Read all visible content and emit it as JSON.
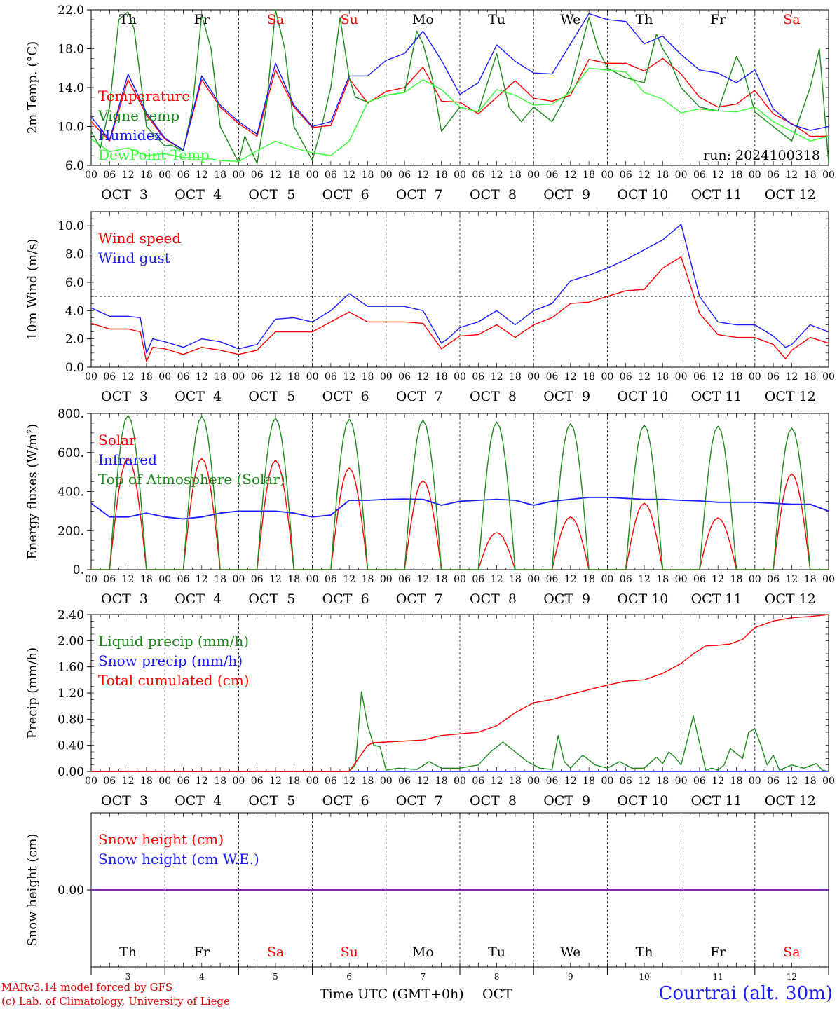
{
  "chart_data": [
    {
      "type": "line",
      "ylabel": "2m Temp. (°C)",
      "ylim": [
        6,
        22
      ],
      "yticks": [
        "6.0",
        "10.0",
        "14.0",
        "18.0",
        "22.0"
      ],
      "annotation": "run: 2024100318",
      "legend_placement": "left",
      "series": [
        {
          "name": "Temperature",
          "color": "#ff0000",
          "x": [
            0,
            6,
            12,
            18,
            24,
            30,
            36,
            42,
            48,
            54,
            60,
            66,
            72,
            78,
            84,
            90,
            96,
            102,
            108,
            114,
            120,
            126,
            132,
            138,
            144,
            150,
            156,
            162,
            168,
            174,
            180,
            186,
            192,
            198,
            204,
            210,
            216,
            222,
            228,
            234,
            240
          ],
          "y": [
            10.5,
            8.5,
            14.8,
            11.2,
            8.7,
            7.6,
            14.8,
            12.0,
            10.3,
            9.0,
            15.8,
            12.0,
            9.9,
            10.1,
            14.9,
            12.4,
            13.6,
            14.0,
            16.1,
            12.6,
            12.5,
            11.3,
            13.0,
            14.7,
            12.9,
            12.6,
            13.2,
            16.9,
            16.5,
            16.5,
            15.7,
            17.0,
            15.4,
            13.0,
            12.0,
            12.3,
            13.7,
            11.3,
            10.3,
            9.0,
            9.0
          ]
        },
        {
          "name": "Vigne temp",
          "color": "#1c8a1c",
          "x": [
            0,
            3,
            6,
            9,
            12,
            14,
            18,
            24,
            26,
            30,
            33,
            36,
            39,
            42,
            48,
            50,
            54,
            57,
            60,
            63,
            66,
            72,
            75,
            78,
            81,
            84,
            86,
            90,
            96,
            102,
            106,
            108,
            111,
            114,
            120,
            126,
            132,
            136,
            140,
            144,
            150,
            156,
            162,
            165,
            168,
            174,
            180,
            184,
            186,
            188,
            192,
            198,
            204,
            210,
            212,
            216,
            220,
            228,
            234,
            237,
            240
          ],
          "y": [
            9.5,
            7.8,
            12.0,
            21.0,
            21.8,
            20.0,
            10.0,
            8.0,
            8.1,
            7.5,
            12.0,
            21.5,
            18.0,
            10.0,
            6.3,
            9.0,
            6.2,
            12.0,
            22.0,
            18.0,
            10.0,
            6.5,
            10.0,
            14.0,
            21.2,
            15.0,
            13.0,
            12.5,
            13.2,
            13.5,
            19.8,
            18.5,
            15.0,
            9.5,
            12.0,
            11.5,
            17.5,
            12.0,
            10.5,
            12.0,
            10.5,
            14.0,
            21.2,
            18.0,
            16.0,
            15.0,
            14.5,
            19.5,
            18.0,
            17.0,
            14.0,
            12.0,
            11.6,
            17.2,
            16.0,
            11.5,
            10.5,
            8.5,
            14.0,
            18.0,
            6.3
          ]
        },
        {
          "name": "Humidex",
          "color": "#1a1aff",
          "x": [
            0,
            6,
            12,
            18,
            24,
            30,
            36,
            42,
            48,
            54,
            60,
            66,
            72,
            78,
            84,
            90,
            96,
            102,
            108,
            114,
            120,
            126,
            132,
            138,
            144,
            150,
            156,
            162,
            168,
            174,
            180,
            186,
            192,
            198,
            204,
            210,
            216,
            222,
            228,
            234,
            240
          ],
          "y": [
            11.0,
            8.6,
            15.4,
            11.4,
            8.8,
            7.6,
            15.2,
            12.2,
            10.5,
            9.2,
            16.5,
            12.2,
            10.0,
            10.5,
            15.2,
            15.2,
            16.8,
            17.5,
            19.8,
            16.8,
            13.3,
            14.5,
            18.4,
            16.7,
            15.5,
            15.4,
            18.5,
            21.6,
            21.0,
            20.8,
            18.5,
            19.3,
            17.4,
            15.8,
            15.5,
            14.5,
            15.8,
            11.8,
            10.2,
            9.6,
            10.0
          ]
        },
        {
          "name": "DewPoint Temp",
          "color": "#33ff33",
          "x": [
            0,
            6,
            12,
            18,
            24,
            30,
            36,
            42,
            48,
            54,
            60,
            66,
            72,
            78,
            84,
            90,
            96,
            102,
            108,
            114,
            120,
            126,
            132,
            138,
            144,
            150,
            156,
            162,
            168,
            174,
            180,
            186,
            192,
            198,
            204,
            210,
            216,
            222,
            228,
            234,
            240
          ],
          "y": [
            8.7,
            7.4,
            7.8,
            7.0,
            7.2,
            6.8,
            6.8,
            6.5,
            6.4,
            7.5,
            8.5,
            7.8,
            7.3,
            7.0,
            8.5,
            12.5,
            13.2,
            13.5,
            14.8,
            13.8,
            12.0,
            11.5,
            13.8,
            13.2,
            12.2,
            12.3,
            13.5,
            16.0,
            15.8,
            15.6,
            13.5,
            12.8,
            11.4,
            11.8,
            11.6,
            11.5,
            12.0,
            10.5,
            9.5,
            8.5,
            9.0
          ]
        }
      ]
    },
    {
      "type": "line",
      "ylabel": "10m Wind (m/s)",
      "ylim": [
        0,
        11
      ],
      "yticks": [
        "0.0",
        "2.0",
        "4.0",
        "6.0",
        "8.0",
        "10.0"
      ],
      "reference_line": 5,
      "legend_placement": "left",
      "series": [
        {
          "name": "Wind speed",
          "color": "#ff0000",
          "x": [
            0,
            6,
            12,
            16,
            18,
            20,
            24,
            30,
            36,
            42,
            48,
            54,
            60,
            66,
            72,
            78,
            84,
            90,
            96,
            102,
            108,
            114,
            116,
            120,
            126,
            132,
            138,
            144,
            150,
            156,
            162,
            168,
            174,
            180,
            186,
            192,
            198,
            204,
            210,
            216,
            222,
            226,
            228,
            234,
            240
          ],
          "y": [
            3.1,
            2.7,
            2.7,
            2.5,
            0.4,
            1.4,
            1.3,
            0.9,
            1.4,
            1.2,
            0.9,
            1.2,
            2.5,
            2.5,
            2.5,
            3.2,
            3.9,
            3.2,
            3.2,
            3.2,
            3.1,
            1.3,
            1.6,
            2.2,
            2.3,
            3.0,
            2.1,
            3.0,
            3.5,
            4.5,
            4.6,
            5.0,
            5.4,
            5.5,
            7.0,
            7.8,
            3.8,
            2.3,
            2.1,
            2.1,
            1.6,
            0.6,
            1.2,
            2.1,
            1.7
          ]
        },
        {
          "name": "Wind gust",
          "color": "#1a1aff",
          "x": [
            0,
            6,
            12,
            16,
            18,
            20,
            24,
            30,
            36,
            42,
            48,
            54,
            60,
            66,
            72,
            78,
            84,
            90,
            96,
            102,
            108,
            114,
            116,
            120,
            126,
            132,
            138,
            144,
            150,
            156,
            162,
            168,
            174,
            180,
            186,
            192,
            198,
            204,
            210,
            216,
            222,
            226,
            228,
            234,
            240
          ],
          "y": [
            4.2,
            3.6,
            3.6,
            3.5,
            1.0,
            2.0,
            1.8,
            1.4,
            2.0,
            1.8,
            1.3,
            1.6,
            3.4,
            3.5,
            3.2,
            4.0,
            5.2,
            4.3,
            4.3,
            4.3,
            4.0,
            1.7,
            2.0,
            2.8,
            3.2,
            4.0,
            3.0,
            4.0,
            4.5,
            6.1,
            6.5,
            7.0,
            7.6,
            8.3,
            9.0,
            10.1,
            5.0,
            3.2,
            3.0,
            3.0,
            2.2,
            1.4,
            1.6,
            3.0,
            2.5
          ]
        }
      ]
    },
    {
      "type": "line",
      "ylabel": "Energy fluxes (W/m²)",
      "ylim": [
        0,
        800
      ],
      "yticks": [
        "0.",
        "200.",
        "400.",
        "600.",
        "800."
      ],
      "legend_placement": "left",
      "series": [
        {
          "name": "Solar",
          "color": "#ff0000",
          "peaks": [
            {
              "day": 0,
              "value": 570
            },
            {
              "day": 1,
              "value": 570
            },
            {
              "day": 2,
              "value": 560
            },
            {
              "day": 3,
              "value": 520
            },
            {
              "day": 4,
              "value": 455
            },
            {
              "day": 5,
              "value": 190
            },
            {
              "day": 6,
              "value": 270
            },
            {
              "day": 7,
              "value": 340
            },
            {
              "day": 8,
              "value": 265
            },
            {
              "day": 9,
              "value": 490
            }
          ]
        },
        {
          "name": "Infrared",
          "color": "#1a1aff",
          "x": [
            0,
            6,
            12,
            18,
            24,
            30,
            36,
            42,
            48,
            54,
            60,
            66,
            72,
            78,
            84,
            90,
            96,
            102,
            108,
            114,
            120,
            126,
            132,
            138,
            144,
            150,
            156,
            162,
            168,
            174,
            180,
            186,
            192,
            198,
            204,
            210,
            216,
            222,
            228,
            234,
            240
          ],
          "y": [
            340,
            270,
            270,
            290,
            270,
            260,
            270,
            290,
            300,
            300,
            300,
            290,
            270,
            280,
            355,
            355,
            360,
            362,
            360,
            330,
            350,
            355,
            360,
            355,
            330,
            350,
            360,
            370,
            370,
            365,
            360,
            360,
            355,
            352,
            345,
            345,
            345,
            340,
            335,
            335,
            300
          ]
        },
        {
          "name": "Top of Atmosphere (Solar)",
          "color": "#1c8a1c",
          "peaks": [
            {
              "day": 0,
              "value": 790
            },
            {
              "day": 1,
              "value": 785
            },
            {
              "day": 2,
              "value": 775
            },
            {
              "day": 3,
              "value": 770
            },
            {
              "day": 4,
              "value": 765
            },
            {
              "day": 5,
              "value": 755
            },
            {
              "day": 6,
              "value": 748
            },
            {
              "day": 7,
              "value": 740
            },
            {
              "day": 8,
              "value": 735
            },
            {
              "day": 9,
              "value": 725
            }
          ]
        }
      ]
    },
    {
      "type": "line",
      "ylabel": "Precip (mm/h)",
      "ylim": [
        0,
        2.4
      ],
      "yticks": [
        "0.00",
        "0.40",
        "0.80",
        "1.20",
        "1.60",
        "2.00",
        "2.40"
      ],
      "legend_placement": "left",
      "series": [
        {
          "name": "Liquid precip (mm/h)",
          "color": "#1c8a1c",
          "x": [
            0,
            84,
            86,
            88,
            90,
            92,
            94,
            96,
            100,
            106,
            110,
            114,
            120,
            126,
            130,
            134,
            138,
            142,
            146,
            150,
            152,
            154,
            156,
            160,
            164,
            168,
            172,
            176,
            180,
            184,
            186,
            188,
            190,
            192,
            196,
            200,
            202,
            204,
            206,
            208,
            212,
            214,
            216,
            218,
            220,
            222,
            224,
            228,
            232,
            236,
            238,
            240
          ],
          "y": [
            0,
            0,
            0.1,
            1.22,
            0.7,
            0.4,
            0.38,
            0.02,
            0.05,
            0.03,
            0.15,
            0.05,
            0.05,
            0.1,
            0.3,
            0.45,
            0.3,
            0.15,
            0.05,
            0.03,
            0.55,
            0.15,
            0.05,
            0.25,
            0.1,
            0.05,
            0.15,
            0.05,
            0.05,
            0.22,
            0.12,
            0.3,
            0.22,
            0.1,
            0.85,
            0.02,
            0.05,
            0.02,
            0.1,
            0.35,
            0.2,
            0.6,
            0.65,
            0.4,
            0.1,
            0.25,
            0.02,
            0.1,
            0.05,
            0.12,
            0.02,
            0.0
          ]
        },
        {
          "name": "Snow precip (mm/h)",
          "color": "#1a1aff",
          "x": [
            0,
            240
          ],
          "y": [
            0,
            0
          ]
        },
        {
          "name": "Total cumulated (cm)",
          "color": "#ff0000",
          "x": [
            0,
            84,
            87,
            90,
            92,
            96,
            108,
            114,
            126,
            132,
            138,
            144,
            150,
            156,
            162,
            168,
            174,
            180,
            186,
            192,
            196,
            200,
            204,
            208,
            212,
            216,
            222,
            228,
            234,
            240
          ],
          "y": [
            0,
            0,
            0.2,
            0.4,
            0.44,
            0.45,
            0.48,
            0.55,
            0.6,
            0.7,
            0.9,
            1.05,
            1.1,
            1.18,
            1.25,
            1.32,
            1.38,
            1.4,
            1.5,
            1.65,
            1.8,
            1.92,
            1.93,
            1.95,
            2.02,
            2.2,
            2.3,
            2.35,
            2.37,
            2.4
          ]
        }
      ]
    },
    {
      "type": "line",
      "ylabel": "Snow height (cm)",
      "yticks": [
        "0.00"
      ],
      "legend_placement": "left",
      "series": [
        {
          "name": "Snow height (cm)",
          "color": "#ff0000",
          "x": [
            0,
            240
          ],
          "y": [
            0,
            0
          ]
        },
        {
          "name": "Snow height (cm W.E.)",
          "color": "#1a1aff",
          "x": [
            0,
            240
          ],
          "y": [
            0,
            0
          ]
        }
      ]
    }
  ],
  "axes": {
    "hour_ticks": [
      "00",
      "06",
      "12",
      "18"
    ],
    "end_tick": "00",
    "date_labels": [
      "OCT  3",
      "OCT  4",
      "OCT  5",
      "OCT  6",
      "OCT  7",
      "OCT  8",
      "OCT  9",
      "OCT 10",
      "OCT 11",
      "OCT 12"
    ],
    "weekdays": [
      "Th",
      "Fr",
      "Sa",
      "Su",
      "Mo",
      "Tu",
      "We",
      "Th",
      "Fr",
      "Sa"
    ],
    "weekday_colors": [
      "#000000",
      "#000000",
      "#ff0000",
      "#ff0000",
      "#000000",
      "#000000",
      "#000000",
      "#000000",
      "#000000",
      "#ff0000"
    ],
    "day_numbers": [
      "3",
      "4",
      "5",
      "6",
      "7",
      "8",
      "9",
      "10",
      "11",
      "12"
    ],
    "xlabel": "Time UTC (GMT+0h)",
    "xlabel_month": "OCT"
  },
  "footer": {
    "model": "MARv3.14 model forced by GFS",
    "credit": "(c) Lab. of Climatology, University of Liege",
    "station": "Courtrai (alt. 30m)"
  }
}
